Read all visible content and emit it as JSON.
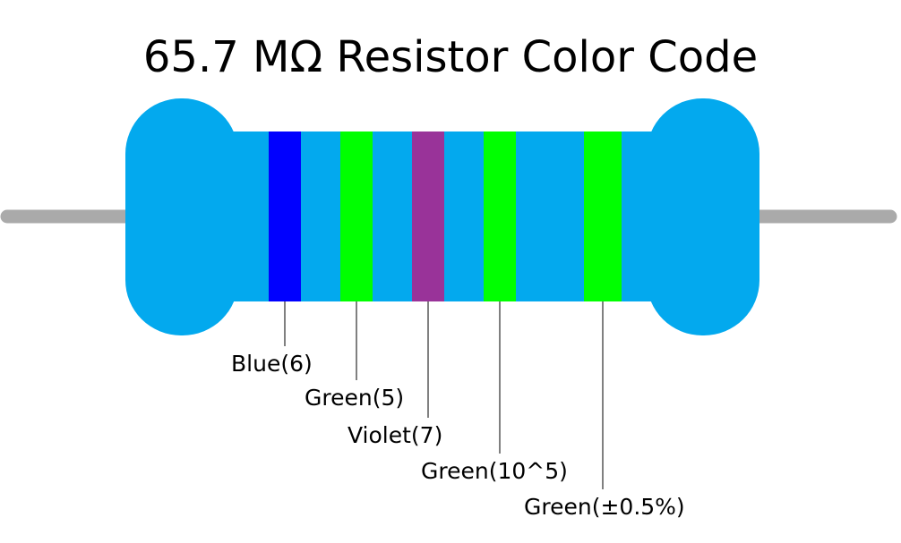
{
  "title": "65.7 MΩ Resistor Color Code",
  "bands": [
    {
      "label": "Blue(6)",
      "color": "#0000ff"
    },
    {
      "label": "Green(5)",
      "color": "#00ff00"
    },
    {
      "label": "Violet(7)",
      "color": "#993399"
    },
    {
      "label": "Green(10^5)",
      "color": "#00ff00"
    },
    {
      "label": "Green(±0.5%)",
      "color": "#00ff00"
    }
  ]
}
